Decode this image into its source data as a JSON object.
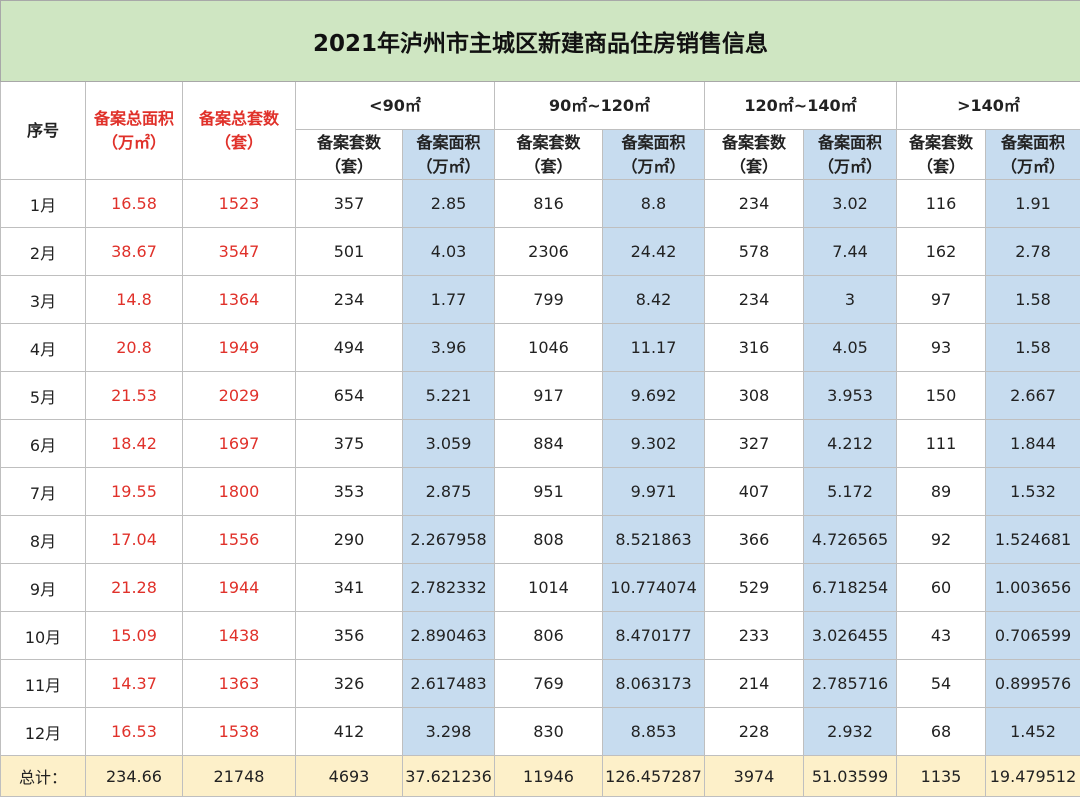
{
  "title": "2021年泸州市主城区新建商品住房销售信息",
  "headers": {
    "seq": "序号",
    "total_area_l1": "备案总面积",
    "total_area_l2": "（万㎡）",
    "total_units_l1": "备案总套数",
    "total_units_l2": "（套）",
    "groups": [
      "<90㎡",
      "90㎡~120㎡",
      "120㎡~140㎡",
      ">140㎡"
    ],
    "sub_units_l1": "备案套数",
    "sub_units_l2": "（套）",
    "sub_area_l1": "备案面积",
    "sub_area_l2": "（万㎡）"
  },
  "rows": [
    [
      "1月",
      "16.58",
      "1523",
      "357",
      "2.85",
      "816",
      "8.8",
      "234",
      "3.02",
      "116",
      "1.91"
    ],
    [
      "2月",
      "38.67",
      "3547",
      "501",
      "4.03",
      "2306",
      "24.42",
      "578",
      "7.44",
      "162",
      "2.78"
    ],
    [
      "3月",
      "14.8",
      "1364",
      "234",
      "1.77",
      "799",
      "8.42",
      "234",
      "3",
      "97",
      "1.58"
    ],
    [
      "4月",
      "20.8",
      "1949",
      "494",
      "3.96",
      "1046",
      "11.17",
      "316",
      "4.05",
      "93",
      "1.58"
    ],
    [
      "5月",
      "21.53",
      "2029",
      "654",
      "5.221",
      "917",
      "9.692",
      "308",
      "3.953",
      "150",
      "2.667"
    ],
    [
      "6月",
      "18.42",
      "1697",
      "375",
      "3.059",
      "884",
      "9.302",
      "327",
      "4.212",
      "111",
      "1.844"
    ],
    [
      "7月",
      "19.55",
      "1800",
      "353",
      "2.875",
      "951",
      "9.971",
      "407",
      "5.172",
      "89",
      "1.532"
    ],
    [
      "8月",
      "17.04",
      "1556",
      "290",
      "2.267958",
      "808",
      "8.521863",
      "366",
      "4.726565",
      "92",
      "1.524681"
    ],
    [
      "9月",
      "21.28",
      "1944",
      "341",
      "2.782332",
      "1014",
      "10.774074",
      "529",
      "6.718254",
      "60",
      "1.003656"
    ],
    [
      "10月",
      "15.09",
      "1438",
      "356",
      "2.890463",
      "806",
      "8.470177",
      "233",
      "3.026455",
      "43",
      "0.706599"
    ],
    [
      "11月",
      "14.37",
      "1363",
      "326",
      "2.617483",
      "769",
      "8.063173",
      "214",
      "2.785716",
      "54",
      "0.899576"
    ],
    [
      "12月",
      "16.53",
      "1538",
      "412",
      "3.298",
      "830",
      "8.853",
      "228",
      "2.932",
      "68",
      "1.452"
    ]
  ],
  "total": [
    "总计：",
    "234.66",
    "21748",
    "4693",
    "37.621236",
    "11946",
    "126.457287",
    "3974",
    "51.03599",
    "1135",
    "19.479512"
  ],
  "colors": {
    "title_bg": "#cfe6c2",
    "area_col_bg": "#c7dcef",
    "total_bg": "#fdf0c9",
    "red_text": "#e0312a"
  }
}
